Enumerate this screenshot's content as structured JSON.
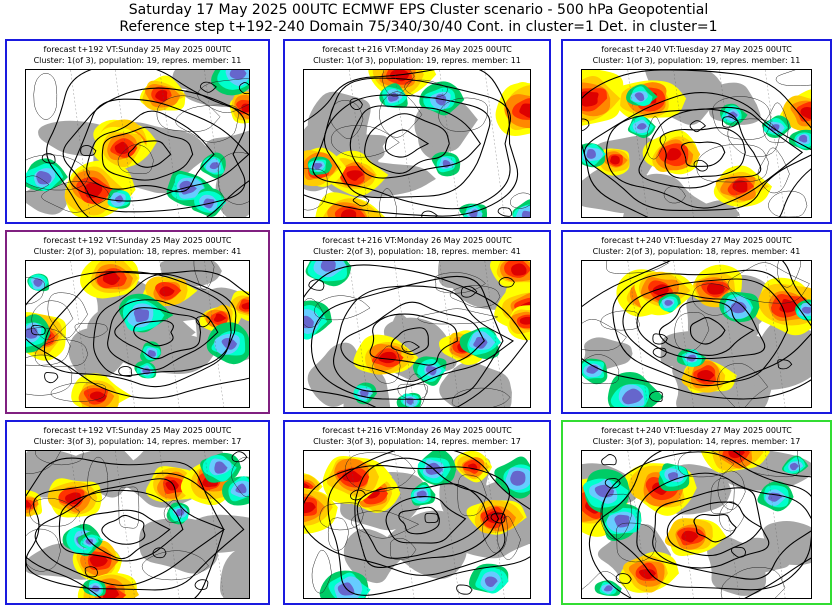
{
  "title_line1": "Saturday 17 May 2025 00UTC ECMWF EPS Cluster scenario - 500 hPa Geopotential",
  "title_line2": "Reference step t+192-240 Domain 75/340/30/40 Cont. in cluster=1 Det. in cluster=1",
  "colors": {
    "frame_default": "#1a1adf",
    "frame_cluster2_first": "#802080",
    "frame_highlight": "#33dd33",
    "land": "#a6a6a6",
    "positive_anomaly": [
      "#ffff00",
      "#ffcc00",
      "#ff8800",
      "#ff3300",
      "#dd0000"
    ],
    "negative_anomaly": [
      "#00cc66",
      "#00ffcc",
      "#66ccff",
      "#6666cc"
    ]
  },
  "panels": [
    {
      "line1": "forecast t+192 VT:Sunday 25 May 2025 00UTC",
      "line2": "Cluster: 1(of 3), population: 19, repres. member: 11",
      "frame": "default"
    },
    {
      "line1": "forecast t+216 VT:Monday 26 May 2025 00UTC",
      "line2": "Cluster: 1(of 3), population: 19, repres. member: 11",
      "frame": "default"
    },
    {
      "line1": "forecast t+240 VT:Tuesday 27 May 2025 00UTC",
      "line2": "Cluster: 1(of 3), population: 19, repres. member: 11",
      "frame": "default"
    },
    {
      "line1": "forecast t+192 VT:Sunday 25 May 2025 00UTC",
      "line2": "Cluster: 2(of 3), population: 18, repres. member: 41",
      "frame": "cluster2_first"
    },
    {
      "line1": "forecast t+216 VT:Monday 26 May 2025 00UTC",
      "line2": "Cluster: 2(of 3), population: 18, repres. member: 41",
      "frame": "default"
    },
    {
      "line1": "forecast t+240 VT:Tuesday 27 May 2025 00UTC",
      "line2": "Cluster: 2(of 3), population: 18, repres. member: 41",
      "frame": "default"
    },
    {
      "line1": "forecast t+192 VT:Sunday 25 May 2025 00UTC",
      "line2": "Cluster: 3(of 3), population: 14, repres. member: 17",
      "frame": "default"
    },
    {
      "line1": "forecast t+216 VT:Monday 26 May 2025 00UTC",
      "line2": "Cluster: 3(of 3), population: 14, repres. member: 17",
      "frame": "default"
    },
    {
      "line1": "forecast t+240 VT:Tuesday 27 May 2025 00UTC",
      "line2": "Cluster: 3(of 3), population: 14, repres. member: 17",
      "frame": "highlight"
    }
  ]
}
